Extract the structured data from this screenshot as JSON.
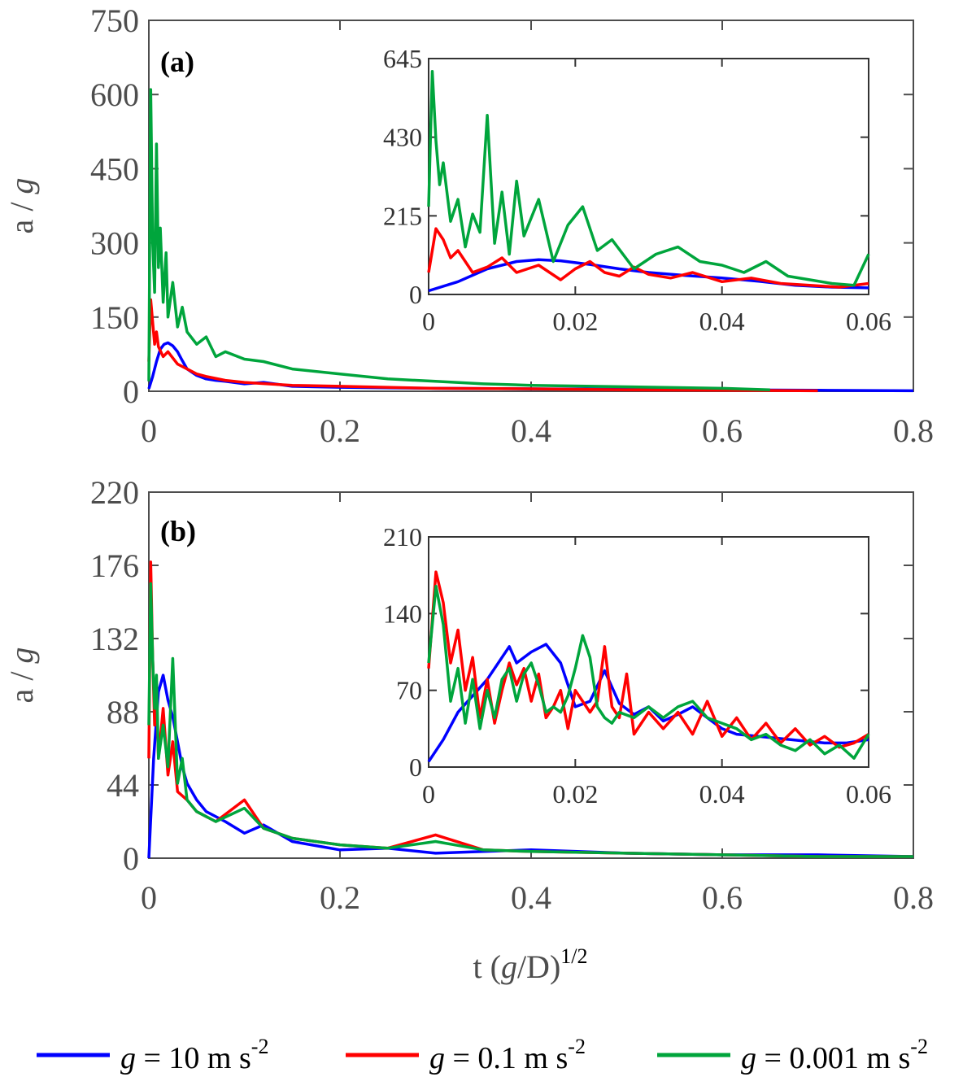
{
  "colors": {
    "blue": "#0000ff",
    "red": "#ff0000",
    "green": "#00a53c",
    "axis": "#4d4d4d",
    "inset_axis": "#333333"
  },
  "xlabel": {
    "base": "t (",
    "italic": "g",
    "mid": "/D)",
    "sup": "1/2"
  },
  "legend": [
    {
      "name": "g = 10 m s-2",
      "italic": "g",
      "text": " = 10 m s",
      "sup": "-2",
      "color": "#0000ff"
    },
    {
      "name": "g = 0.1 m s-2",
      "italic": "g",
      "text": " = 0.1 m s",
      "sup": "-2",
      "color": "#ff0000"
    },
    {
      "name": "g = 0.001 m s-2",
      "italic": "g",
      "text": " = 0.001 m s",
      "sup": "-2",
      "color": "#00a53c"
    }
  ],
  "chart_data": [
    {
      "type": "line",
      "panel": "a",
      "label": "(a)",
      "ylabel": {
        "base": "a / ",
        "italic": "g"
      },
      "xlim": [
        0,
        0.8
      ],
      "ylim": [
        0,
        750
      ],
      "xticks": [
        "0",
        "0.2",
        "0.4",
        "0.6",
        "0.8"
      ],
      "yticks": [
        "0",
        "150",
        "300",
        "450",
        "600",
        "750"
      ],
      "series": [
        {
          "name": "g = 10 m s-2",
          "color": "#0000ff",
          "x": [
            0,
            0.004,
            0.008,
            0.012,
            0.016,
            0.02,
            0.025,
            0.03,
            0.035,
            0.04,
            0.05,
            0.06,
            0.07,
            0.08,
            0.1,
            0.12,
            0.15,
            0.2,
            0.3,
            0.4,
            0.5,
            0.6,
            0.7,
            0.8
          ],
          "y": [
            5,
            30,
            60,
            85,
            95,
            98,
            92,
            80,
            62,
            45,
            32,
            25,
            22,
            20,
            15,
            18,
            10,
            8,
            6,
            5,
            4,
            3,
            2,
            1
          ]
        },
        {
          "name": "g = 0.1 m s-2",
          "color": "#ff0000",
          "x": [
            0,
            0.002,
            0.004,
            0.006,
            0.008,
            0.01,
            0.015,
            0.02,
            0.03,
            0.04,
            0.05,
            0.06,
            0.08,
            0.1,
            0.15,
            0.2,
            0.3,
            0.4,
            0.5,
            0.6,
            0.7
          ],
          "y": [
            60,
            185,
            140,
            95,
            120,
            90,
            70,
            80,
            55,
            45,
            35,
            30,
            22,
            18,
            12,
            10,
            6,
            5,
            3,
            2,
            1
          ]
        },
        {
          "name": "g = 0.001 m s-2",
          "color": "#00a53c",
          "x": [
            0,
            0.002,
            0.004,
            0.006,
            0.008,
            0.01,
            0.012,
            0.015,
            0.018,
            0.02,
            0.025,
            0.03,
            0.035,
            0.04,
            0.05,
            0.06,
            0.07,
            0.08,
            0.1,
            0.12,
            0.15,
            0.2,
            0.25,
            0.3,
            0.35,
            0.4,
            0.5,
            0.6,
            0.65
          ],
          "y": [
            20,
            610,
            300,
            200,
            500,
            250,
            330,
            180,
            280,
            150,
            220,
            130,
            170,
            120,
            95,
            110,
            70,
            80,
            65,
            60,
            45,
            35,
            25,
            20,
            15,
            12,
            9,
            6,
            3
          ]
        }
      ],
      "inset": {
        "xlim": [
          0,
          0.06
        ],
        "ylim": [
          0,
          645
        ],
        "xticks": [
          "0",
          "0.02",
          "0.04",
          "0.06"
        ],
        "yticks": [
          "0",
          "215",
          "430",
          "645"
        ],
        "series": [
          {
            "name": "g = 10 m s-2",
            "color": "#0000ff",
            "x": [
              0,
              0.004,
              0.008,
              0.012,
              0.015,
              0.018,
              0.022,
              0.026,
              0.03,
              0.035,
              0.04,
              0.045,
              0.05,
              0.055,
              0.06
            ],
            "y": [
              10,
              35,
              70,
              90,
              95,
              92,
              82,
              70,
              60,
              52,
              45,
              36,
              25,
              20,
              18
            ]
          },
          {
            "name": "g = 0.1 m s-2",
            "color": "#ff0000",
            "x": [
              0,
              0.001,
              0.002,
              0.003,
              0.004,
              0.006,
              0.008,
              0.01,
              0.012,
              0.015,
              0.018,
              0.02,
              0.022,
              0.024,
              0.026,
              0.028,
              0.03,
              0.033,
              0.036,
              0.04,
              0.044,
              0.048,
              0.052,
              0.056,
              0.06
            ],
            "y": [
              60,
              180,
              150,
              100,
              120,
              60,
              75,
              100,
              60,
              80,
              40,
              70,
              90,
              60,
              50,
              75,
              55,
              45,
              60,
              35,
              45,
              30,
              25,
              20,
              30
            ]
          },
          {
            "name": "g = 0.001 m s-2",
            "color": "#00a53c",
            "x": [
              0,
              0.0005,
              0.001,
              0.0015,
              0.002,
              0.003,
              0.004,
              0.005,
              0.006,
              0.007,
              0.008,
              0.009,
              0.01,
              0.011,
              0.012,
              0.013,
              0.015,
              0.017,
              0.019,
              0.021,
              0.023,
              0.025,
              0.028,
              0.031,
              0.034,
              0.037,
              0.04,
              0.043,
              0.046,
              0.049,
              0.052,
              0.055,
              0.058,
              0.06
            ],
            "y": [
              240,
              610,
              420,
              300,
              360,
              200,
              260,
              130,
              220,
              170,
              490,
              140,
              280,
              110,
              310,
              160,
              260,
              90,
              190,
              240,
              120,
              150,
              70,
              110,
              130,
              90,
              80,
              60,
              90,
              50,
              40,
              30,
              25,
              110
            ]
          }
        ]
      }
    },
    {
      "type": "line",
      "panel": "b",
      "label": "(b)",
      "ylabel": {
        "base": "a / ",
        "italic": "g"
      },
      "xlim": [
        0,
        0.8
      ],
      "ylim": [
        0,
        220
      ],
      "xticks": [
        "0",
        "0.2",
        "0.4",
        "0.6",
        "0.8"
      ],
      "yticks": [
        "0",
        "44",
        "88",
        "132",
        "176",
        "220"
      ],
      "series": [
        {
          "name": "g = 10 m s-2",
          "color": "#0000ff",
          "x": [
            0,
            0.005,
            0.01,
            0.015,
            0.02,
            0.025,
            0.03,
            0.035,
            0.04,
            0.05,
            0.06,
            0.08,
            0.1,
            0.12,
            0.15,
            0.2,
            0.25,
            0.3,
            0.35,
            0.4,
            0.5,
            0.6,
            0.7,
            0.8
          ],
          "y": [
            0,
            60,
            100,
            110,
            95,
            85,
            70,
            55,
            45,
            35,
            28,
            22,
            15,
            20,
            10,
            5,
            6,
            3,
            4,
            5,
            3,
            2,
            2,
            1
          ]
        },
        {
          "name": "g = 0.1 m s-2",
          "color": "#ff0000",
          "x": [
            0,
            0.002,
            0.004,
            0.006,
            0.008,
            0.01,
            0.015,
            0.02,
            0.025,
            0.03,
            0.04,
            0.05,
            0.07,
            0.1,
            0.12,
            0.15,
            0.2,
            0.25,
            0.3,
            0.35,
            0.4,
            0.5,
            0.6,
            0.7,
            0.8
          ],
          "y": [
            60,
            178,
            120,
            80,
            100,
            60,
            90,
            50,
            70,
            40,
            35,
            28,
            22,
            35,
            18,
            12,
            8,
            6,
            14,
            5,
            4,
            3,
            2,
            1,
            1
          ]
        },
        {
          "name": "g = 0.001 m s-2",
          "color": "#00a53c",
          "x": [
            0,
            0.002,
            0.004,
            0.006,
            0.008,
            0.01,
            0.015,
            0.02,
            0.025,
            0.03,
            0.035,
            0.04,
            0.05,
            0.07,
            0.1,
            0.12,
            0.15,
            0.2,
            0.25,
            0.3,
            0.35,
            0.4,
            0.5,
            0.6,
            0.7,
            0.8
          ],
          "y": [
            80,
            165,
            120,
            90,
            110,
            60,
            80,
            55,
            120,
            45,
            60,
            35,
            28,
            22,
            30,
            18,
            12,
            8,
            6,
            10,
            5,
            4,
            3,
            2,
            1,
            1
          ]
        }
      ],
      "inset": {
        "xlim": [
          0,
          0.06
        ],
        "ylim": [
          0,
          210
        ],
        "xticks": [
          "0",
          "0.02",
          "0.04",
          "0.06"
        ],
        "yticks": [
          "0",
          "70",
          "140",
          "210"
        ],
        "series": [
          {
            "name": "g = 10 m s-2",
            "color": "#0000ff",
            "x": [
              0,
              0.002,
              0.004,
              0.006,
              0.008,
              0.01,
              0.011,
              0.012,
              0.014,
              0.016,
              0.018,
              0.02,
              0.022,
              0.024,
              0.026,
              0.028,
              0.03,
              0.032,
              0.034,
              0.036,
              0.038,
              0.04,
              0.042,
              0.045,
              0.048,
              0.051,
              0.054,
              0.057,
              0.06
            ],
            "y": [
              5,
              25,
              50,
              65,
              80,
              100,
              110,
              95,
              105,
              112,
              95,
              55,
              60,
              88,
              58,
              48,
              55,
              42,
              48,
              55,
              45,
              35,
              30,
              28,
              26,
              24,
              22,
              22,
              25
            ]
          },
          {
            "name": "g = 0.1 m s-2",
            "color": "#ff0000",
            "x": [
              0,
              0.001,
              0.002,
              0.003,
              0.004,
              0.005,
              0.006,
              0.007,
              0.008,
              0.009,
              0.01,
              0.011,
              0.012,
              0.013,
              0.014,
              0.015,
              0.016,
              0.017,
              0.018,
              0.019,
              0.02,
              0.021,
              0.022,
              0.023,
              0.024,
              0.025,
              0.026,
              0.027,
              0.028,
              0.03,
              0.032,
              0.034,
              0.036,
              0.038,
              0.04,
              0.042,
              0.044,
              0.046,
              0.048,
              0.05,
              0.052,
              0.054,
              0.056,
              0.058,
              0.06
            ],
            "y": [
              90,
              178,
              150,
              95,
              125,
              70,
              100,
              45,
              80,
              40,
              70,
              95,
              75,
              90,
              60,
              85,
              45,
              55,
              70,
              35,
              70,
              60,
              50,
              60,
              110,
              55,
              45,
              85,
              30,
              50,
              35,
              50,
              30,
              60,
              28,
              45,
              25,
              40,
              22,
              35,
              20,
              28,
              18,
              22,
              30
            ]
          },
          {
            "name": "g = 0.001 m s-2",
            "color": "#00a53c",
            "x": [
              0,
              0.001,
              0.002,
              0.003,
              0.004,
              0.005,
              0.006,
              0.007,
              0.008,
              0.009,
              0.01,
              0.011,
              0.012,
              0.013,
              0.014,
              0.015,
              0.016,
              0.017,
              0.018,
              0.019,
              0.02,
              0.021,
              0.022,
              0.023,
              0.024,
              0.025,
              0.026,
              0.028,
              0.03,
              0.032,
              0.034,
              0.036,
              0.038,
              0.04,
              0.042,
              0.044,
              0.046,
              0.048,
              0.05,
              0.052,
              0.054,
              0.056,
              0.058,
              0.06
            ],
            "y": [
              95,
              165,
              130,
              60,
              90,
              40,
              80,
              35,
              70,
              45,
              80,
              90,
              60,
              85,
              95,
              75,
              50,
              55,
              50,
              65,
              90,
              120,
              100,
              55,
              45,
              40,
              50,
              45,
              55,
              45,
              55,
              60,
              45,
              40,
              35,
              25,
              30,
              20,
              15,
              25,
              12,
              20,
              8,
              30
            ]
          }
        ]
      }
    }
  ]
}
